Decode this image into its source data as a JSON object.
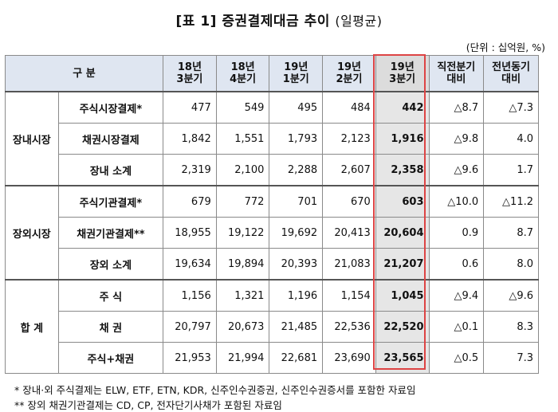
{
  "title": {
    "main": "[표 1] 증권결제대금 추이",
    "sub": "(일평균)"
  },
  "unit": "(단위 : 십억원, %)",
  "header": {
    "gubun": "구 분",
    "cols": [
      "18년\n3분기",
      "18년\n4분기",
      "19년\n1분기",
      "19년\n2분기",
      "19년\n3분기",
      "직전분기\n대비",
      "전년동기\n대비"
    ]
  },
  "groups": [
    {
      "name": "장내시장",
      "rows": [
        {
          "label": "주식시장결제*",
          "values": [
            "477",
            "549",
            "495",
            "484",
            "442",
            "△8.7",
            "△7.3"
          ]
        },
        {
          "label": "채권시장결제",
          "values": [
            "1,842",
            "1,551",
            "1,793",
            "2,123",
            "1,916",
            "△9.8",
            "4.0"
          ]
        },
        {
          "label": "장내 소계",
          "values": [
            "2,319",
            "2,100",
            "2,288",
            "2,607",
            "2,358",
            "△9.6",
            "1.7"
          ]
        }
      ]
    },
    {
      "name": "장외시장",
      "rows": [
        {
          "label": "주식기관결제*",
          "values": [
            "679",
            "772",
            "701",
            "670",
            "603",
            "△10.0",
            "△11.2"
          ]
        },
        {
          "label": "채권기관결제**",
          "values": [
            "18,955",
            "19,122",
            "19,692",
            "20,413",
            "20,604",
            "0.9",
            "8.7"
          ]
        },
        {
          "label": "장외 소계",
          "values": [
            "19,634",
            "19,894",
            "20,393",
            "21,083",
            "21,207",
            "0.6",
            "8.0"
          ]
        }
      ]
    },
    {
      "name": "합 계",
      "rows": [
        {
          "label": "주 식",
          "values": [
            "1,156",
            "1,321",
            "1,196",
            "1,154",
            "1,045",
            "△9.4",
            "△9.6"
          ]
        },
        {
          "label": "채 권",
          "values": [
            "20,797",
            "20,673",
            "21,485",
            "22,536",
            "22,520",
            "△0.1",
            "8.3"
          ]
        },
        {
          "label": "주식+채권",
          "values": [
            "21,953",
            "21,994",
            "22,681",
            "23,690",
            "23,565",
            "△0.5",
            "7.3"
          ]
        }
      ]
    }
  ],
  "notes": [
    "* 장내·외 주식결제는 ELW, ETF, ETN, KDR, 신주인수권증권, 신주인수권증서를 포함한 자료임",
    "** 장외 채권기관결제는 CD, CP, 전자단기사채가 포함된 자료임"
  ],
  "colors": {
    "header_bg": "#dfe6f1",
    "highlight_bg": "#e6e6e6",
    "highlight_border": "#dd4444"
  }
}
